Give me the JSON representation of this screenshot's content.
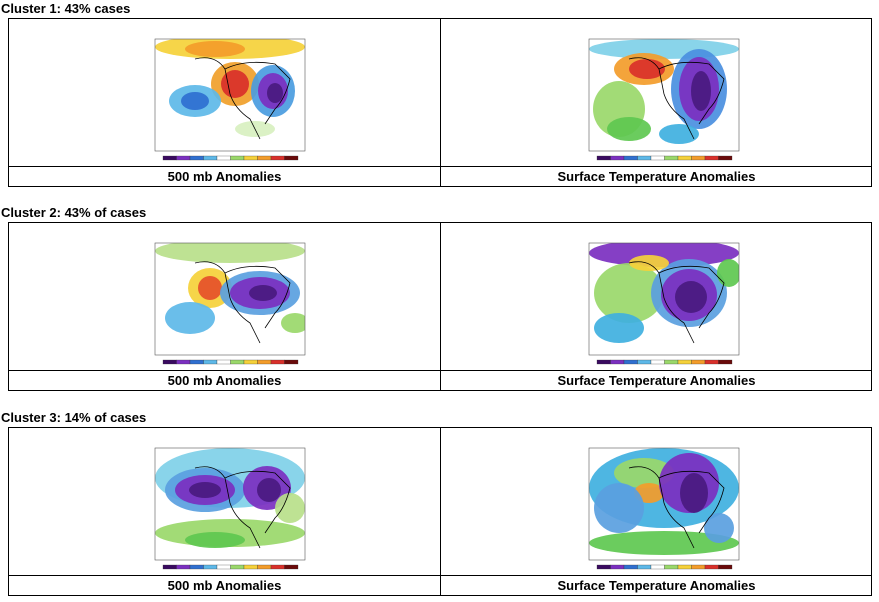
{
  "clusters": [
    {
      "title": "Cluster 1: 43% cases",
      "panels": [
        {
          "caption": "500 mb Anomalies"
        },
        {
          "caption": "Surface Temperature Anomalies"
        }
      ]
    },
    {
      "title": "Cluster 2: 43% of cases",
      "panels": [
        {
          "caption": "500 mb Anomalies"
        },
        {
          "caption": "Surface Temperature Anomalies"
        }
      ]
    },
    {
      "title": "Cluster 3: 14% of cases",
      "panels": [
        {
          "caption": "500 mb Anomalies"
        },
        {
          "caption": "Surface Temperature Anomalies"
        }
      ]
    }
  ]
}
